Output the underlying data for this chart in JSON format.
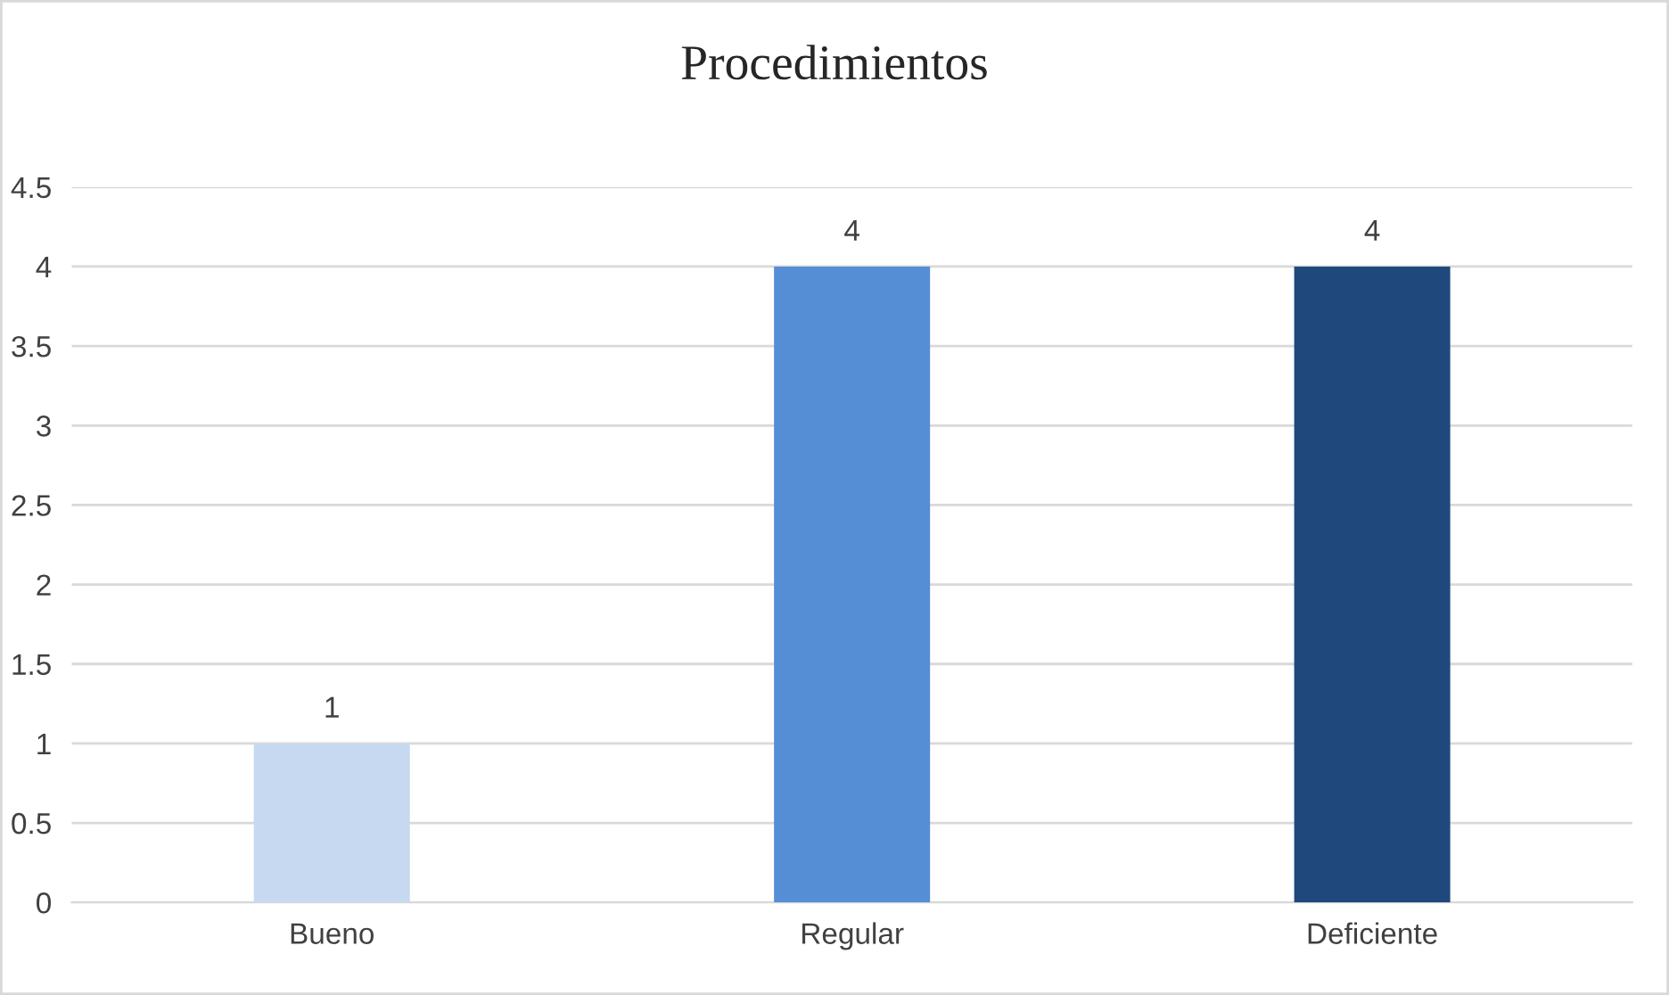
{
  "chart_data": {
    "type": "bar",
    "title": "Procedimientos",
    "categories": [
      "Bueno",
      "Regular",
      "Deficiente"
    ],
    "values": [
      1,
      4,
      4
    ],
    "colors": [
      "#c6d9f0",
      "#558ed5",
      "#1f497d"
    ],
    "ylim": [
      0,
      4.5
    ],
    "yticks": [
      0,
      0.5,
      1,
      1.5,
      2,
      2.5,
      3,
      3.5,
      4,
      4.5
    ],
    "grid": "y",
    "data_labels": true,
    "legend": false
  }
}
